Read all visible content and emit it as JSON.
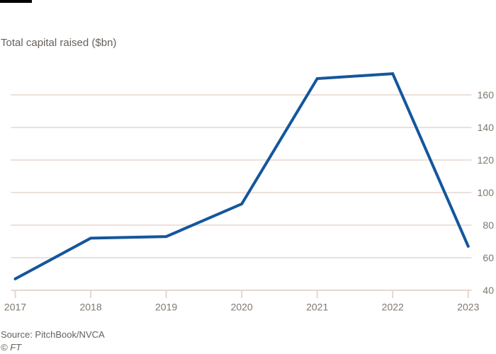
{
  "header": {
    "title": "Total capital raised ($bn)"
  },
  "footer": {
    "source": "Source: PitchBook/NVCA",
    "credit": "© FT"
  },
  "colors": {
    "background": "#ffffff",
    "tag_bar": "#000000",
    "line": "#14569c",
    "grid": "#e7d6ce",
    "axis_label": "#7e776f",
    "text": "#66605c"
  },
  "chart_data": {
    "type": "line",
    "title": "Total capital raised ($bn)",
    "x": [
      "2017",
      "2018",
      "2019",
      "2020",
      "2021",
      "2022",
      "2023"
    ],
    "series": [
      {
        "name": "Total capital raised ($bn)",
        "values": [
          47,
          72,
          73,
          93,
          170,
          173,
          67
        ]
      }
    ],
    "ylim": [
      40,
      180
    ],
    "yticks": [
      40,
      60,
      80,
      100,
      120,
      140,
      160
    ],
    "y_axis_side": "right",
    "grid": "horizontal",
    "legend": "none",
    "source": "Source: PitchBook/NVCA"
  }
}
